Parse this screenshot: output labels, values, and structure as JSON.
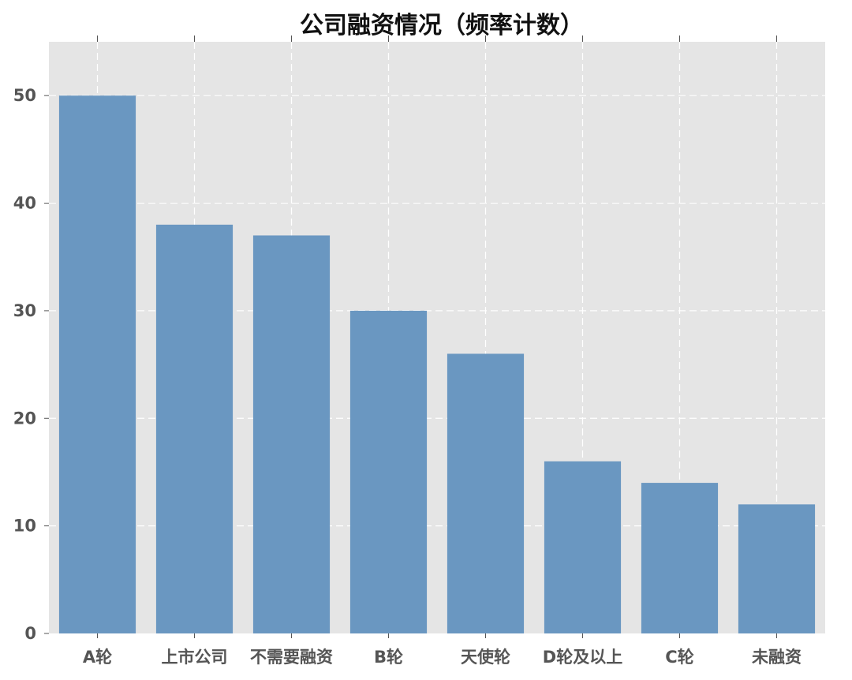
{
  "chart_data": {
    "type": "bar",
    "title": "公司融资情况（频率计数）",
    "xlabel": "",
    "ylabel": "",
    "categories": [
      "A轮",
      "上市公司",
      "不需要融资",
      "B轮",
      "天使轮",
      "D轮及以上",
      "C轮",
      "未融资"
    ],
    "values": [
      50,
      38,
      37,
      30,
      26,
      16,
      14,
      12
    ],
    "ylim": [
      0,
      55
    ],
    "yticks": [
      0,
      10,
      20,
      30,
      40,
      50
    ],
    "grid": true,
    "legend": "none",
    "colors": {
      "bar": "#6a97c1",
      "plot_background": "#e5e5e5",
      "grid": "#ffffff",
      "tick_text": "#555555"
    }
  }
}
